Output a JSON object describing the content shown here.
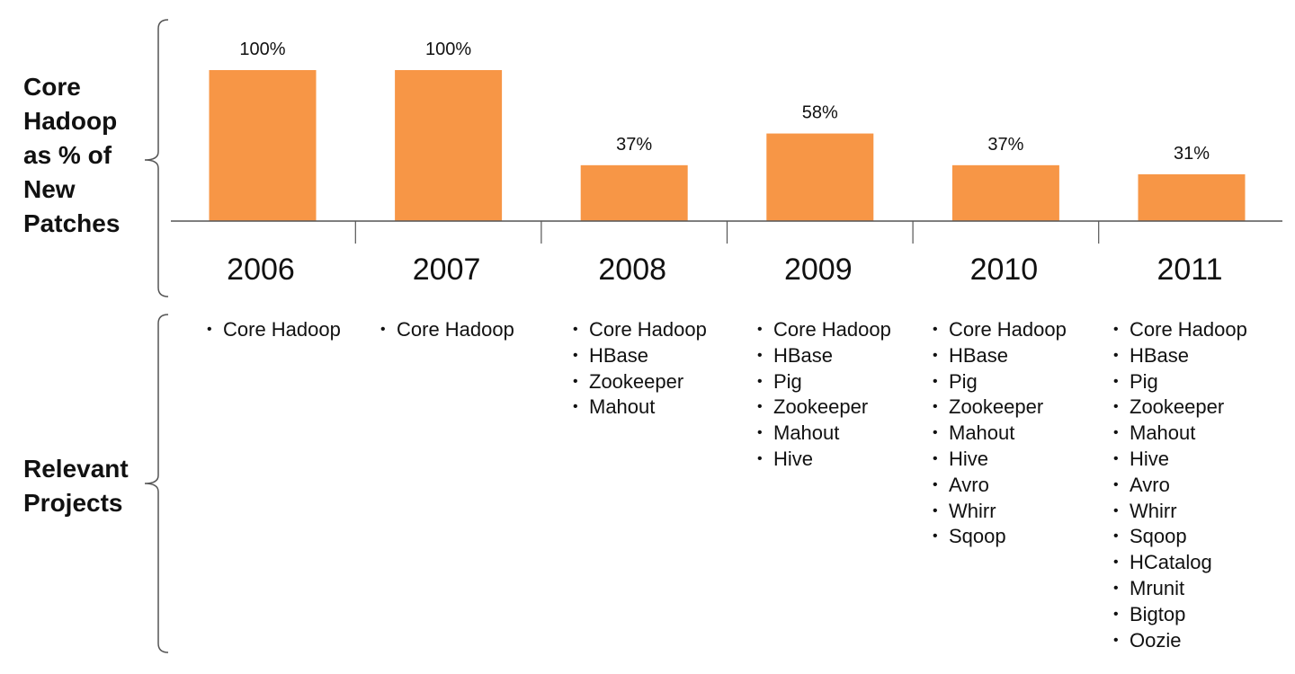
{
  "labels": {
    "core": "Core\nHadoop\nas % of\nNew\nPatches",
    "projects": "Relevant\nProjects"
  },
  "colors": {
    "bar": "#f79646",
    "axis": "#555555",
    "brace": "#555555",
    "text": "#111111"
  },
  "chart_data": {
    "type": "bar",
    "categories": [
      "2006",
      "2007",
      "2008",
      "2009",
      "2010",
      "2011"
    ],
    "values": [
      100,
      100,
      37,
      58,
      37,
      31
    ],
    "data_labels": [
      "100%",
      "100%",
      "37%",
      "58%",
      "37%",
      "31%"
    ],
    "ylabel": "Core Hadoop as % of New Patches",
    "ylim": [
      0,
      100
    ],
    "grid": false,
    "legend": "none"
  },
  "projects": [
    [
      "Core Hadoop"
    ],
    [
      "Core Hadoop"
    ],
    [
      "Core Hadoop",
      "HBase",
      "Zookeeper",
      "Mahout"
    ],
    [
      "Core Hadoop",
      "HBase",
      "Pig",
      "Zookeeper",
      "Mahout",
      "Hive"
    ],
    [
      "Core Hadoop",
      "HBase",
      "Pig",
      "Zookeeper",
      "Mahout",
      "Hive",
      "Avro",
      "Whirr",
      "Sqoop"
    ],
    [
      "Core Hadoop",
      "HBase",
      "Pig",
      "Zookeeper",
      "Mahout",
      "Hive",
      "Avro",
      "Whirr",
      "Sqoop",
      "HCatalog",
      "Mrunit",
      "Bigtop",
      "Oozie"
    ]
  ]
}
